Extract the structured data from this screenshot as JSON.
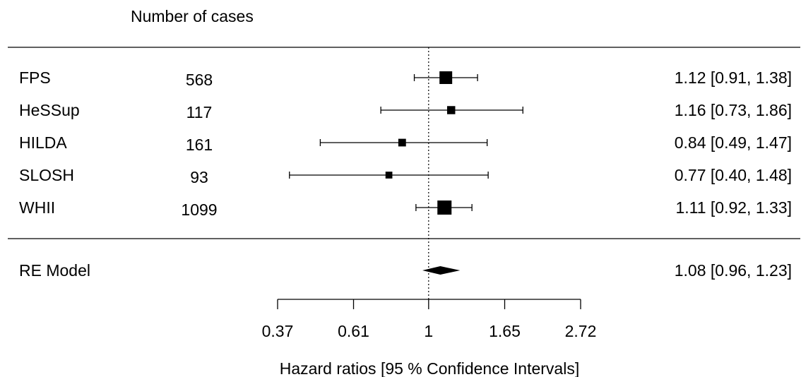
{
  "chart_data": {
    "type": "forest",
    "column_header": "Number of cases",
    "xlabel": "Hazard ratios [95 % Confidence Intervals]",
    "scale": "log",
    "xlim": [
      0.37,
      2.72
    ],
    "ticks": [
      {
        "value": 0.37,
        "label": "0.37"
      },
      {
        "value": 0.61,
        "label": "0.61"
      },
      {
        "value": 1,
        "label": "1"
      },
      {
        "value": 1.65,
        "label": "1.65"
      },
      {
        "value": 2.72,
        "label": "2.72"
      }
    ],
    "reference_line": 1,
    "studies": [
      {
        "label": "FPS",
        "cases": "568",
        "estimate": 1.12,
        "lower": 0.91,
        "upper": 1.38,
        "weight": 0.42,
        "text": "1.12 [0.91, 1.38]"
      },
      {
        "label": "HeSSup",
        "cases": "117",
        "estimate": 1.16,
        "lower": 0.73,
        "upper": 1.86,
        "weight": 0.12,
        "text": "1.16 [0.73, 1.86]"
      },
      {
        "label": "HILDA",
        "cases": "161",
        "estimate": 0.84,
        "lower": 0.49,
        "upper": 1.47,
        "weight": 0.1,
        "text": "0.84 [0.49, 1.47]"
      },
      {
        "label": "SLOSH",
        "cases": "93",
        "estimate": 0.77,
        "lower": 0.4,
        "upper": 1.48,
        "weight": 0.07,
        "text": "0.77 [0.40, 1.48]"
      },
      {
        "label": "WHII",
        "cases": "1099",
        "estimate": 1.11,
        "lower": 0.92,
        "upper": 1.33,
        "weight": 0.55,
        "text": "1.11 [0.92, 1.33]"
      }
    ],
    "summary": {
      "label": "RE Model",
      "estimate": 1.08,
      "lower": 0.96,
      "upper": 1.23,
      "text": "1.08 [0.96, 1.23]"
    },
    "colors": {
      "ink": "#000000",
      "background": "#ffffff"
    }
  }
}
